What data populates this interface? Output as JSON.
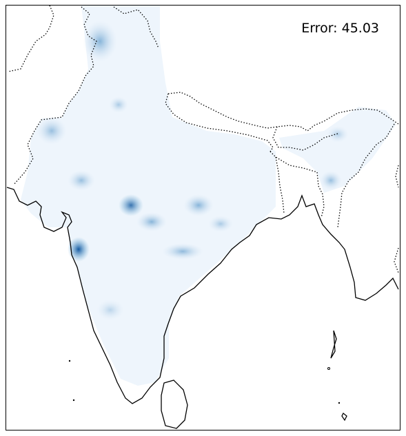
{
  "map": {
    "annotation": "Error: 45.03"
  }
}
